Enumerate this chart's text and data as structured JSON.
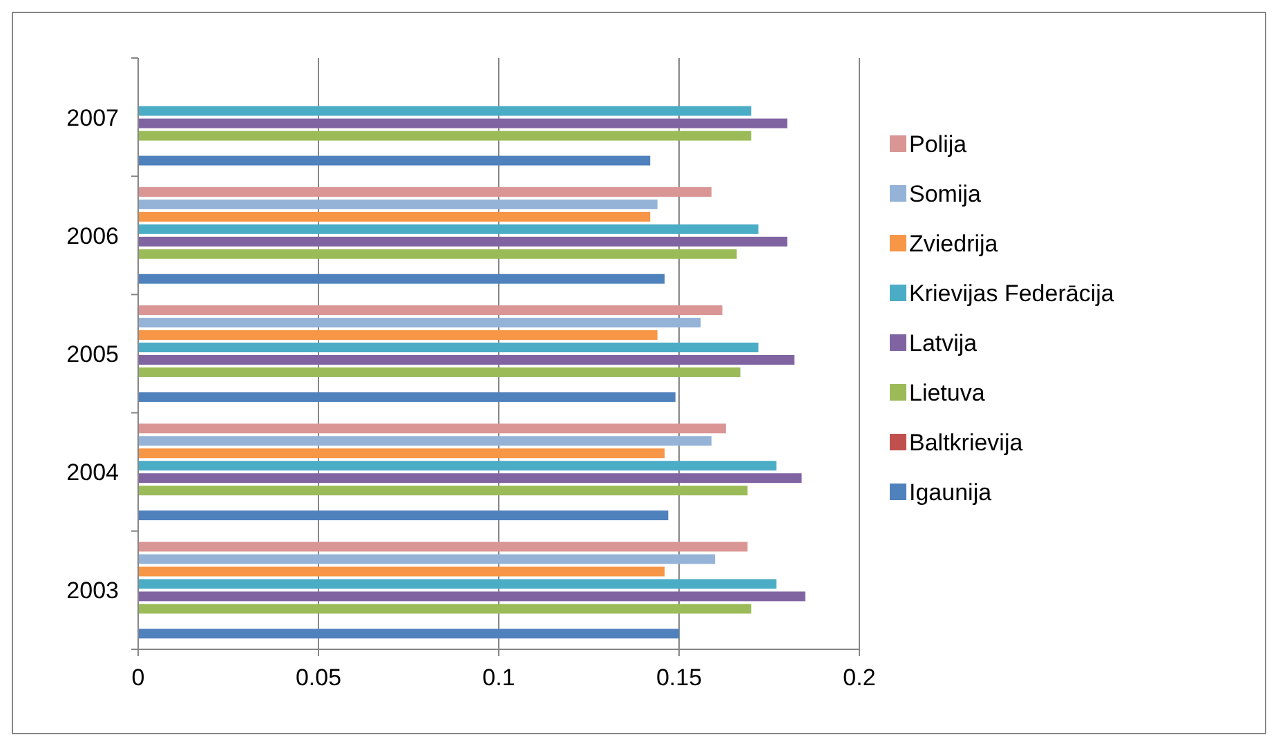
{
  "chart_data": {
    "type": "bar",
    "orientation": "horizontal",
    "categories": [
      "2007",
      "2006",
      "2005",
      "2004",
      "2003"
    ],
    "series": [
      {
        "name": "Igaunija",
        "color": "#4f81bd",
        "values": [
          0.142,
          0.146,
          0.149,
          0.147,
          0.15
        ]
      },
      {
        "name": "Baltkrievija",
        "color": "#c0504d",
        "values": [
          null,
          null,
          null,
          null,
          null
        ]
      },
      {
        "name": "Lietuva",
        "color": "#9bbb59",
        "values": [
          0.17,
          0.166,
          0.167,
          0.169,
          0.17
        ]
      },
      {
        "name": "Latvija",
        "color": "#8064a2",
        "values": [
          0.18,
          0.18,
          0.182,
          0.184,
          0.185
        ]
      },
      {
        "name": "Krievijas Federācija",
        "color": "#4bacc6",
        "values": [
          0.17,
          0.172,
          0.172,
          0.177,
          0.177
        ]
      },
      {
        "name": "Zviedrija",
        "color": "#f79646",
        "values": [
          null,
          0.142,
          0.144,
          0.146,
          0.146
        ]
      },
      {
        "name": "Somija",
        "color": "#95b3d7",
        "values": [
          null,
          0.144,
          0.156,
          0.159,
          0.16
        ]
      },
      {
        "name": "Polija",
        "color": "#d99694",
        "values": [
          null,
          0.159,
          0.162,
          0.163,
          0.169
        ]
      }
    ],
    "xlim": [
      0,
      0.2
    ],
    "xticks": [
      0,
      0.05,
      0.1,
      0.15,
      0.2
    ],
    "grid": "x",
    "legend": "right"
  }
}
